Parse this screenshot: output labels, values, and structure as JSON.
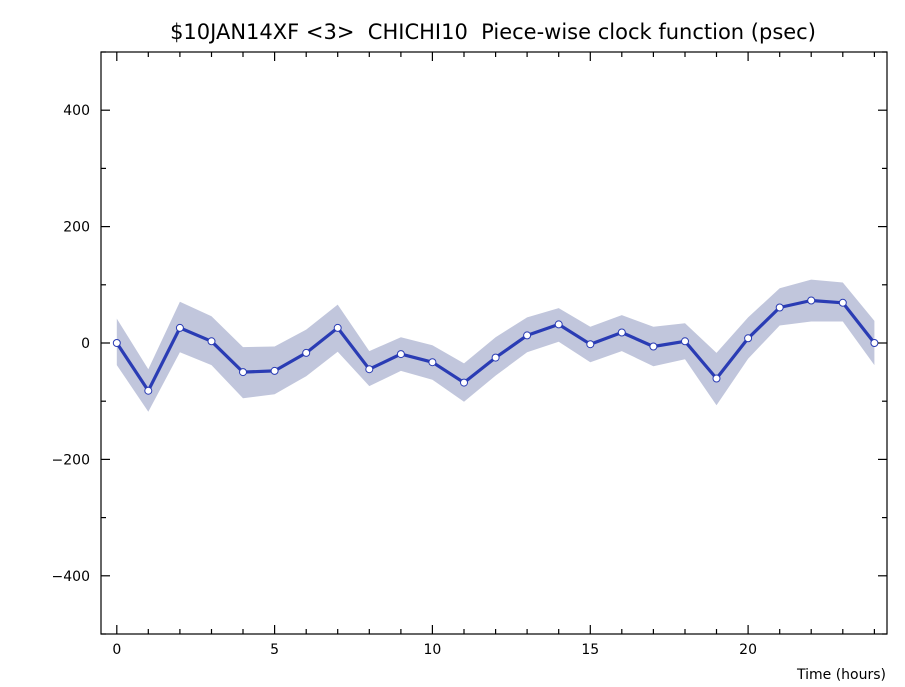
{
  "chart_data": {
    "type": "line",
    "title": "$10JAN14XF <3>  CHICHI10  Piece-wise clock function (psec)",
    "xlabel": "Time (hours)",
    "ylabel": "",
    "xlim": [
      -0.5,
      24.4
    ],
    "ylim": [
      -500,
      500
    ],
    "xticks": [
      0,
      5,
      10,
      15,
      20
    ],
    "xtick_labels": [
      "0",
      "5",
      "10",
      "15",
      "20"
    ],
    "yticks": [
      -400,
      -200,
      0,
      200,
      400
    ],
    "ytick_labels": [
      "−400",
      "−200",
      "0",
      "200",
      "400"
    ],
    "grid": false,
    "series": [
      {
        "x": [
          0,
          1,
          2,
          3,
          4,
          5,
          6,
          7,
          8,
          9,
          10,
          11,
          12,
          13,
          14,
          15,
          16,
          17,
          18,
          19,
          20,
          21,
          22,
          23,
          24
        ],
        "y": [
          0,
          -82,
          26,
          3,
          -50,
          -48,
          -17,
          26,
          -45,
          -19,
          -33,
          -68,
          -25,
          13,
          32,
          -2,
          18,
          -6,
          3,
          -61,
          8,
          61,
          73,
          69,
          0
        ],
        "band_upper": [
          42,
          -45,
          71,
          46,
          -7,
          -6,
          23,
          66,
          -14,
          10,
          -4,
          -35,
          10,
          44,
          60,
          28,
          48,
          28,
          34,
          -17,
          44,
          94,
          109,
          104,
          38
        ],
        "band_lower": [
          -38,
          -118,
          -16,
          -38,
          -95,
          -88,
          -57,
          -15,
          -74,
          -48,
          -63,
          -101,
          -56,
          -16,
          2,
          -33,
          -14,
          -40,
          -28,
          -107,
          -27,
          30,
          37,
          37,
          -38
        ]
      }
    ],
    "colors": {
      "line": "#2a3cb4",
      "band": "#c1c6dc",
      "marker_fill": "#ffffff",
      "marker_stroke": "#2a3cb4"
    }
  }
}
